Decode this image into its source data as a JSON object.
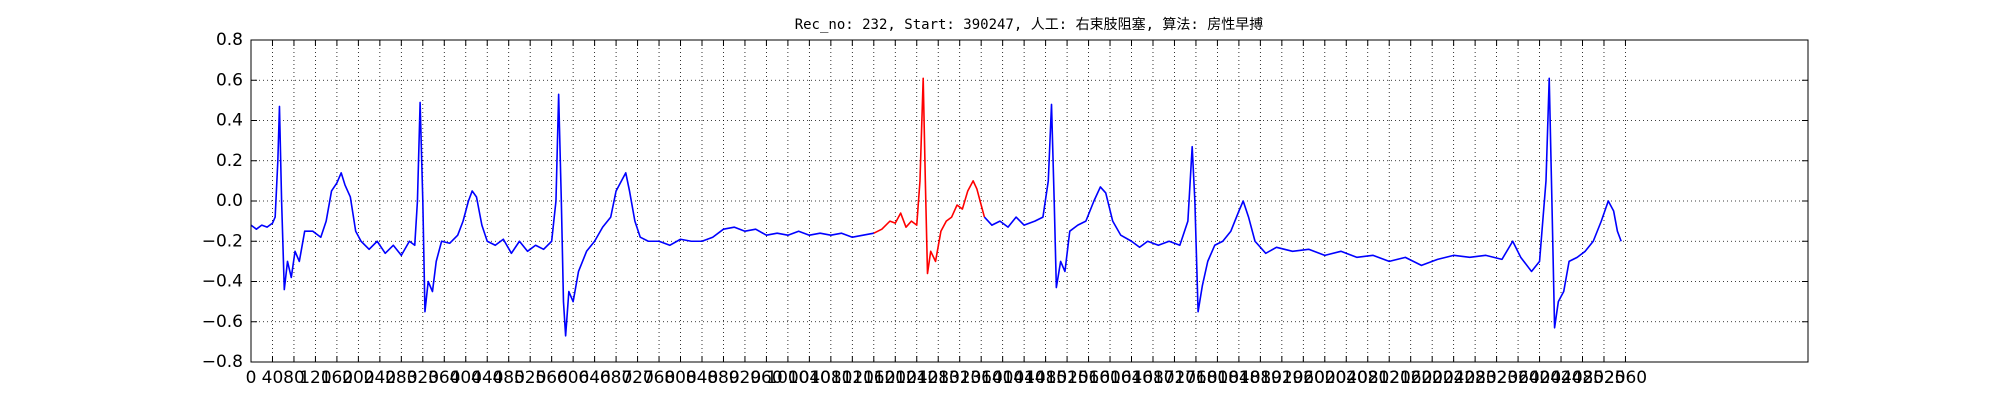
{
  "chart_data": {
    "type": "line",
    "title": "Rec_no: 232, Start: 390247, 人工: 右束肢阻塞, 算法: 房性早搏",
    "xlim": [
      0,
      2900
    ],
    "xticks": [
      0,
      40,
      80,
      120,
      160,
      200,
      240,
      280,
      320,
      360,
      400,
      440,
      480,
      520,
      560,
      600,
      640,
      680,
      720,
      760,
      800,
      840,
      880,
      920,
      960,
      1000,
      1040,
      1080,
      1120,
      1160,
      1200,
      1240,
      1280,
      1320,
      1360,
      1400,
      1440,
      1480,
      1520,
      1560,
      1600,
      1640,
      1680,
      1720,
      1760,
      1800,
      1840,
      1880,
      1920,
      1960,
      2000,
      2040,
      2080,
      2120,
      2160,
      2200,
      2240,
      2280,
      2320,
      2360,
      2400,
      2440,
      2480,
      2520,
      2560
    ],
    "ylim": [
      -0.8,
      0.8
    ],
    "yticks": [
      {
        "value": -0.8,
        "label": "−0.8"
      },
      {
        "value": -0.6,
        "label": "−0.6"
      },
      {
        "value": -0.4,
        "label": "−0.4"
      },
      {
        "value": -0.2,
        "label": "−0.2"
      },
      {
        "value": 0,
        "label": "0.0"
      },
      0.2,
      0.4,
      0.6,
      0.8
    ],
    "grid": true,
    "series": [
      {
        "color": "#0000ff",
        "x": [
          0,
          10,
          20,
          30,
          40,
          45,
          50,
          53,
          57,
          62,
          68,
          75,
          82,
          90,
          100,
          115,
          130,
          140,
          150,
          160,
          168,
          175,
          185,
          195,
          205,
          220,
          235,
          250,
          265,
          280,
          295,
          305,
          310,
          315,
          320,
          324,
          330,
          338,
          345,
          355,
          370,
          385,
          395,
          405,
          412,
          420,
          430,
          440,
          455,
          470,
          485,
          500,
          515,
          530,
          545,
          560,
          568,
          573,
          578,
          582,
          586,
          592,
          600,
          610,
          625,
          640,
          655,
          670,
          680,
          690,
          698,
          705,
          715,
          725,
          740,
          760,
          780,
          800,
          820,
          840,
          860,
          880,
          900,
          920,
          940,
          960,
          980,
          1000,
          1020,
          1040,
          1060,
          1080,
          1100,
          1120,
          1140,
          1160
        ],
        "values": [
          -0.12,
          -0.14,
          -0.12,
          -0.13,
          -0.11,
          -0.08,
          0.2,
          0.47,
          0.0,
          -0.44,
          -0.3,
          -0.38,
          -0.25,
          -0.3,
          -0.15,
          -0.15,
          -0.18,
          -0.1,
          0.05,
          0.09,
          0.14,
          0.08,
          0.02,
          -0.15,
          -0.2,
          -0.24,
          -0.2,
          -0.26,
          -0.22,
          -0.27,
          -0.2,
          -0.22,
          0.0,
          0.49,
          0.0,
          -0.55,
          -0.4,
          -0.45,
          -0.3,
          -0.2,
          -0.21,
          -0.17,
          -0.1,
          0.0,
          0.05,
          0.02,
          -0.12,
          -0.2,
          -0.22,
          -0.19,
          -0.26,
          -0.2,
          -0.25,
          -0.22,
          -0.24,
          -0.2,
          0.0,
          0.53,
          0.0,
          -0.5,
          -0.67,
          -0.45,
          -0.5,
          -0.35,
          -0.25,
          -0.2,
          -0.13,
          -0.08,
          0.05,
          0.1,
          0.14,
          0.05,
          -0.1,
          -0.18,
          -0.2,
          -0.2,
          -0.22,
          -0.19,
          -0.2,
          -0.2,
          -0.18,
          -0.14,
          -0.13,
          -0.15,
          -0.14,
          -0.17,
          -0.16,
          -0.17,
          -0.15,
          -0.17,
          -0.16,
          -0.17,
          -0.16,
          -0.18,
          -0.17,
          -0.16
        ]
      },
      {
        "color": "#ff0000",
        "x": [
          1160,
          1175,
          1190,
          1200,
          1210,
          1220,
          1230,
          1240,
          1246,
          1252,
          1256,
          1260,
          1266,
          1275,
          1285,
          1295,
          1305,
          1315,
          1325,
          1335,
          1345,
          1352,
          1360,
          1366
        ],
        "values": [
          -0.16,
          -0.14,
          -0.1,
          -0.11,
          -0.06,
          -0.13,
          -0.1,
          -0.12,
          0.1,
          0.61,
          0.1,
          -0.36,
          -0.25,
          -0.3,
          -0.15,
          -0.1,
          -0.08,
          -0.02,
          -0.04,
          0.05,
          0.1,
          0.06,
          -0.02,
          -0.08
        ]
      },
      {
        "color": "#0000ff",
        "x": [
          1366,
          1380,
          1395,
          1410,
          1425,
          1440,
          1460,
          1475,
          1485,
          1491,
          1496,
          1500,
          1508,
          1516,
          1525,
          1540,
          1555,
          1570,
          1582,
          1592,
          1605,
          1620,
          1640,
          1655,
          1670,
          1690,
          1710,
          1730,
          1745,
          1753,
          1758,
          1764,
          1772,
          1782,
          1795,
          1810,
          1825,
          1840,
          1848,
          1858,
          1870,
          1890,
          1910,
          1940,
          1970,
          2000,
          2030,
          2060,
          2090,
          2120,
          2150,
          2180,
          2210,
          2240,
          2270,
          2300,
          2330,
          2350,
          2365,
          2385,
          2400,
          2412,
          2418,
          2423,
          2428,
          2435,
          2445,
          2455,
          2470,
          2485,
          2500,
          2515,
          2528,
          2538,
          2545,
          2552
        ],
        "values": [
          -0.08,
          -0.12,
          -0.1,
          -0.13,
          -0.08,
          -0.12,
          -0.1,
          -0.08,
          0.1,
          0.48,
          0.0,
          -0.43,
          -0.3,
          -0.35,
          -0.15,
          -0.12,
          -0.1,
          0.0,
          0.07,
          0.04,
          -0.1,
          -0.17,
          -0.2,
          -0.23,
          -0.2,
          -0.22,
          -0.2,
          -0.22,
          -0.1,
          0.27,
          0.0,
          -0.55,
          -0.42,
          -0.3,
          -0.22,
          -0.2,
          -0.15,
          -0.05,
          0.0,
          -0.08,
          -0.2,
          -0.26,
          -0.23,
          -0.25,
          -0.24,
          -0.27,
          -0.25,
          -0.28,
          -0.27,
          -0.3,
          -0.28,
          -0.32,
          -0.29,
          -0.27,
          -0.28,
          -0.27,
          -0.29,
          -0.2,
          -0.28,
          -0.35,
          -0.3,
          0.1,
          0.61,
          0.0,
          -0.63,
          -0.5,
          -0.45,
          -0.3,
          -0.28,
          -0.25,
          -0.2,
          -0.1,
          0.0,
          -0.05,
          -0.15,
          -0.2
        ]
      }
    ]
  }
}
